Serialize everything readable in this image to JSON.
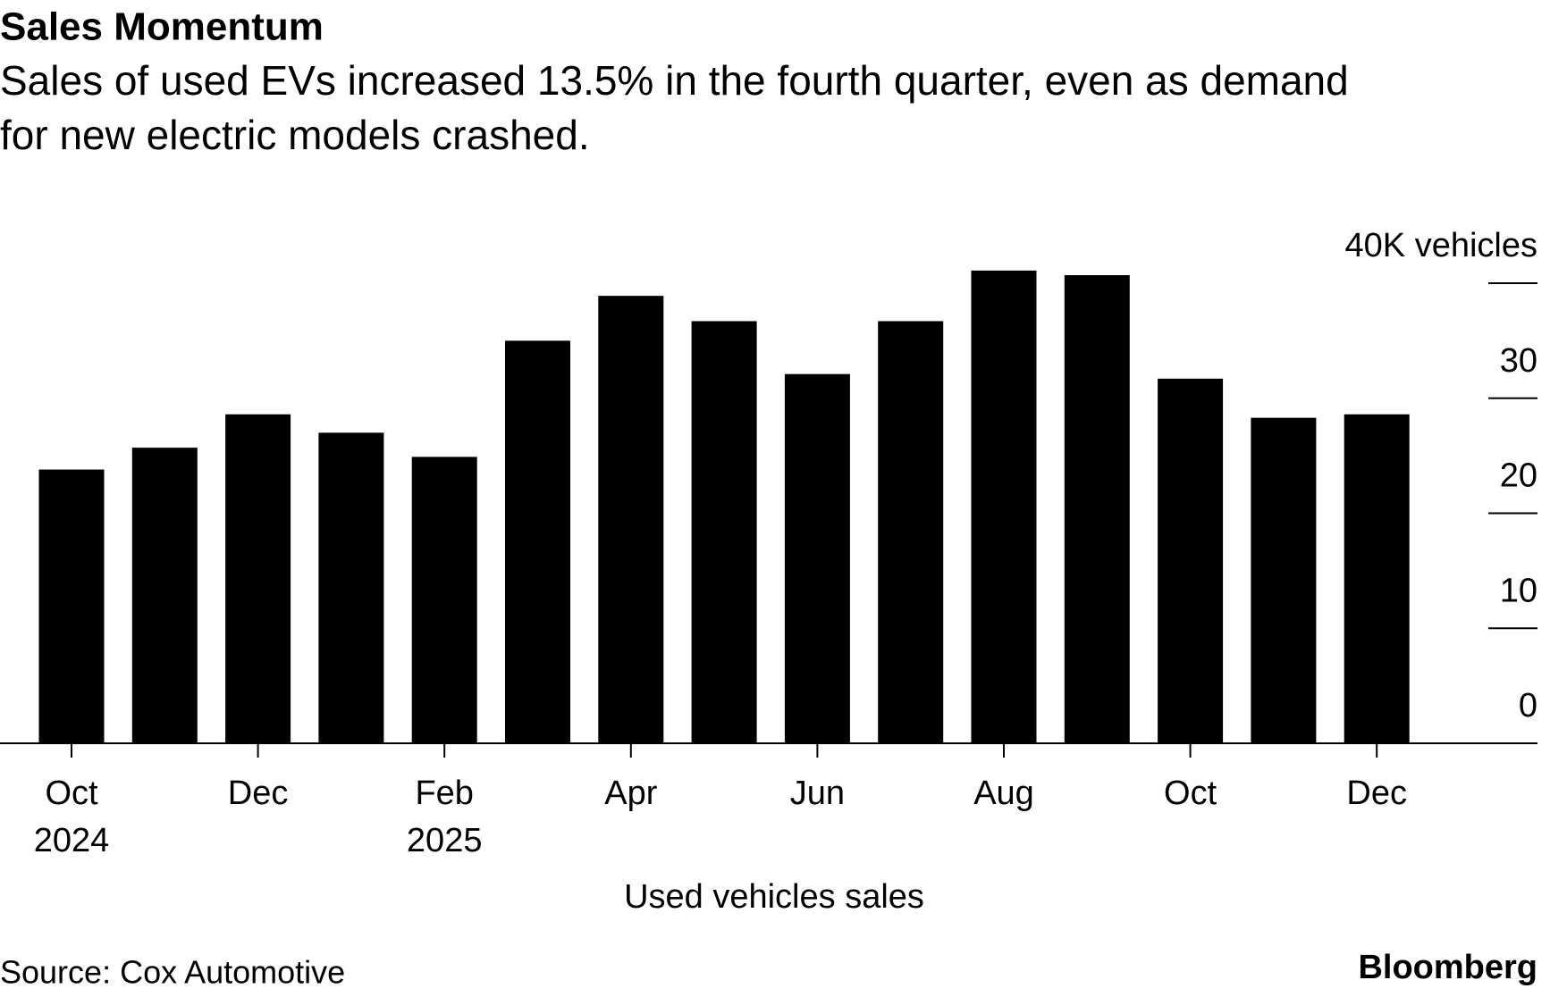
{
  "chart_data": {
    "type": "bar",
    "title": "Sales Momentum",
    "subtitle": [
      "Sales of used EVs increased 13.5% in the fourth quarter, even as demand",
      "for new electric models crashed."
    ],
    "categories": [
      "Oct",
      null,
      "Dec",
      null,
      "Feb",
      null,
      "Apr",
      null,
      "Jun",
      null,
      "Aug",
      null,
      "Oct",
      null,
      "Dec"
    ],
    "year_labels": [
      "2024",
      null,
      null,
      null,
      "2025",
      null,
      null,
      null,
      null,
      null,
      null,
      null,
      null,
      null,
      null
    ],
    "series": [
      {
        "name": "Used vehicles sales",
        "color": "#000000",
        "values": [
          23.8,
          25.7,
          28.6,
          27.0,
          24.9,
          35.0,
          38.9,
          36.7,
          32.1,
          36.7,
          41.1,
          40.7,
          31.7,
          28.3,
          28.6
        ]
      }
    ],
    "ylim": [
      0,
      42
    ],
    "yticks": [
      0,
      10,
      20,
      30,
      {
        "value": 40,
        "label": "40K vehicles"
      }
    ],
    "source": "Source: Cox Automotive",
    "brand": "Bloomberg"
  }
}
